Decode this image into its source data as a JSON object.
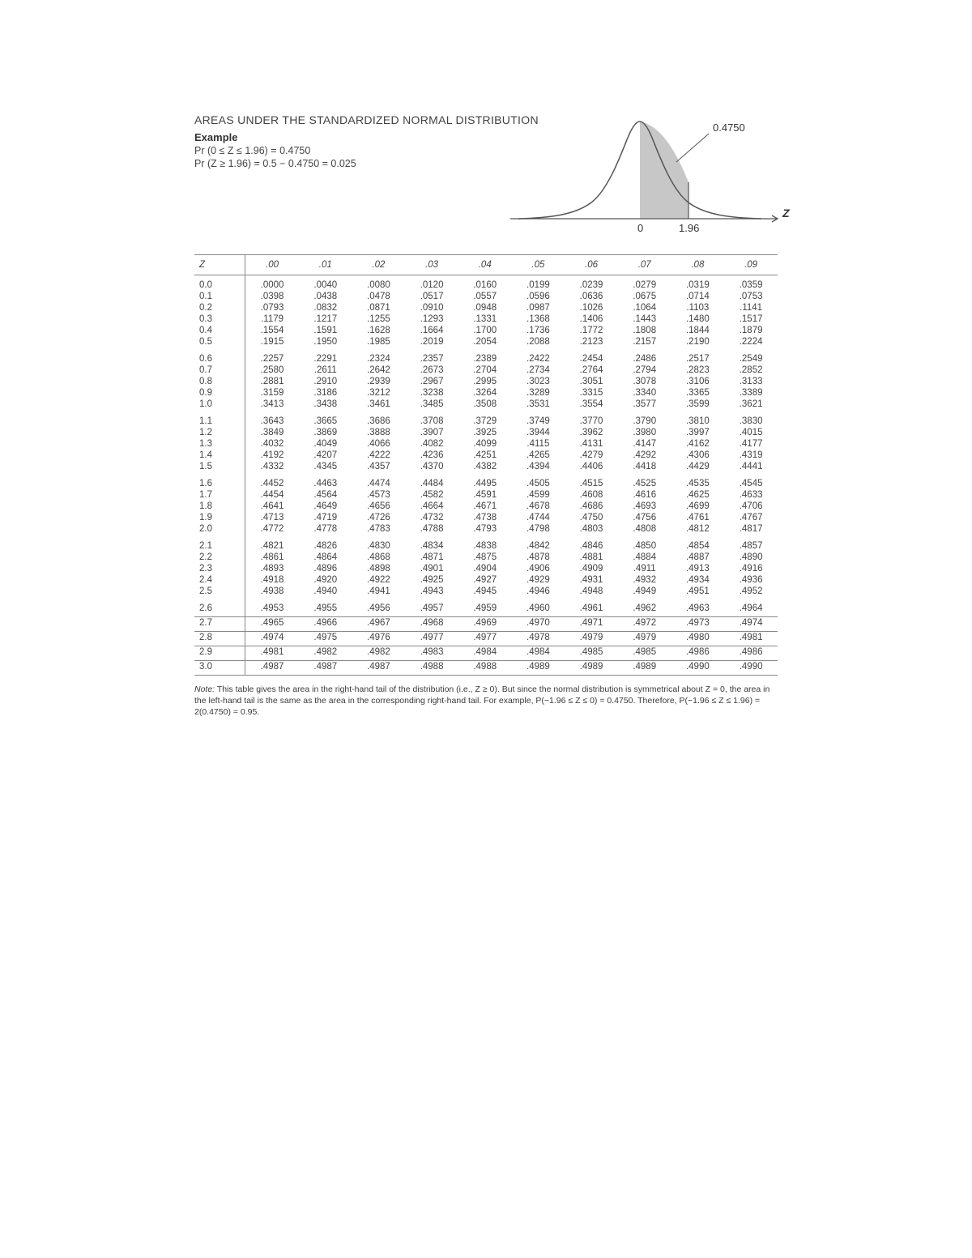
{
  "title": "AREAS UNDER THE STANDARDIZED NORMAL DISTRIBUTION",
  "example_label": "Example",
  "formula1": "Pr (0 ≤ Z ≤ 1.96) = 0.4750",
  "formula2": "Pr (Z ≥ 1.96) = 0.5 − 0.4750 = 0.025",
  "curve": {
    "area_label": "0.4750",
    "axis_label_Z": "Z",
    "tick_0": "0",
    "tick_196": "1.96",
    "curve_color": "#555555",
    "fill_color": "#c7c7c7",
    "axis_color": "#555555",
    "text_color": "#333333"
  },
  "columns": [
    "Z",
    ".00",
    ".01",
    ".02",
    ".03",
    ".04",
    ".05",
    ".06",
    ".07",
    ".08",
    ".09"
  ],
  "groups": [
    {
      "rows": [
        [
          "0.0",
          ".0000",
          ".0040",
          ".0080",
          ".0120",
          ".0160",
          ".0199",
          ".0239",
          ".0279",
          ".0319",
          ".0359"
        ],
        [
          "0.1",
          ".0398",
          ".0438",
          ".0478",
          ".0517",
          ".0557",
          ".0596",
          ".0636",
          ".0675",
          ".0714",
          ".0753"
        ],
        [
          "0.2",
          ".0793",
          ".0832",
          ".0871",
          ".0910",
          ".0948",
          ".0987",
          ".1026",
          ".1064",
          ".1103",
          ".1141"
        ],
        [
          "0.3",
          ".1179",
          ".1217",
          ".1255",
          ".1293",
          ".1331",
          ".1368",
          ".1406",
          ".1443",
          ".1480",
          ".1517"
        ],
        [
          "0.4",
          ".1554",
          ".1591",
          ".1628",
          ".1664",
          ".1700",
          ".1736",
          ".1772",
          ".1808",
          ".1844",
          ".1879"
        ],
        [
          "0.5",
          ".1915",
          ".1950",
          ".1985",
          ".2019",
          ".2054",
          ".2088",
          ".2123",
          ".2157",
          ".2190",
          ".2224"
        ]
      ]
    },
    {
      "rows": [
        [
          "0.6",
          ".2257",
          ".2291",
          ".2324",
          ".2357",
          ".2389",
          ".2422",
          ".2454",
          ".2486",
          ".2517",
          ".2549"
        ],
        [
          "0.7",
          ".2580",
          ".2611",
          ".2642",
          ".2673",
          ".2704",
          ".2734",
          ".2764",
          ".2794",
          ".2823",
          ".2852"
        ],
        [
          "0.8",
          ".2881",
          ".2910",
          ".2939",
          ".2967",
          ".2995",
          ".3023",
          ".3051",
          ".3078",
          ".3106",
          ".3133"
        ],
        [
          "0.9",
          ".3159",
          ".3186",
          ".3212",
          ".3238",
          ".3264",
          ".3289",
          ".3315",
          ".3340",
          ".3365",
          ".3389"
        ],
        [
          "1.0",
          ".3413",
          ".3438",
          ".3461",
          ".3485",
          ".3508",
          ".3531",
          ".3554",
          ".3577",
          ".3599",
          ".3621"
        ]
      ]
    },
    {
      "rows": [
        [
          "1.1",
          ".3643",
          ".3665",
          ".3686",
          ".3708",
          ".3729",
          ".3749",
          ".3770",
          ".3790",
          ".3810",
          ".3830"
        ],
        [
          "1.2",
          ".3849",
          ".3869",
          ".3888",
          ".3907",
          ".3925",
          ".3944",
          ".3962",
          ".3980",
          ".3997",
          ".4015"
        ],
        [
          "1.3",
          ".4032",
          ".4049",
          ".4066",
          ".4082",
          ".4099",
          ".4115",
          ".4131",
          ".4147",
          ".4162",
          ".4177"
        ],
        [
          "1.4",
          ".4192",
          ".4207",
          ".4222",
          ".4236",
          ".4251",
          ".4265",
          ".4279",
          ".4292",
          ".4306",
          ".4319"
        ],
        [
          "1.5",
          ".4332",
          ".4345",
          ".4357",
          ".4370",
          ".4382",
          ".4394",
          ".4406",
          ".4418",
          ".4429",
          ".4441"
        ]
      ]
    },
    {
      "rows": [
        [
          "1.6",
          ".4452",
          ".4463",
          ".4474",
          ".4484",
          ".4495",
          ".4505",
          ".4515",
          ".4525",
          ".4535",
          ".4545"
        ],
        [
          "1.7",
          ".4454",
          ".4564",
          ".4573",
          ".4582",
          ".4591",
          ".4599",
          ".4608",
          ".4616",
          ".4625",
          ".4633"
        ],
        [
          "1.8",
          ".4641",
          ".4649",
          ".4656",
          ".4664",
          ".4671",
          ".4678",
          ".4686",
          ".4693",
          ".4699",
          ".4706"
        ],
        [
          "1.9",
          ".4713",
          ".4719",
          ".4726",
          ".4732",
          ".4738",
          ".4744",
          ".4750",
          ".4756",
          ".4761",
          ".4767"
        ],
        [
          "2.0",
          ".4772",
          ".4778",
          ".4783",
          ".4788",
          ".4793",
          ".4798",
          ".4803",
          ".4808",
          ".4812",
          ".4817"
        ]
      ]
    },
    {
      "rows": [
        [
          "2.1",
          ".4821",
          ".4826",
          ".4830",
          ".4834",
          ".4838",
          ".4842",
          ".4846",
          ".4850",
          ".4854",
          ".4857"
        ],
        [
          "2.2",
          ".4861",
          ".4864",
          ".4868",
          ".4871",
          ".4875",
          ".4878",
          ".4881",
          ".4884",
          ".4887",
          ".4890"
        ],
        [
          "2.3",
          ".4893",
          ".4896",
          ".4898",
          ".4901",
          ".4904",
          ".4906",
          ".4909",
          ".4911",
          ".4913",
          ".4916"
        ],
        [
          "2.4",
          ".4918",
          ".4920",
          ".4922",
          ".4925",
          ".4927",
          ".4929",
          ".4931",
          ".4932",
          ".4934",
          ".4936"
        ],
        [
          "2.5",
          ".4938",
          ".4940",
          ".4941",
          ".4943",
          ".4945",
          ".4946",
          ".4948",
          ".4949",
          ".4951",
          ".4952"
        ]
      ]
    },
    {
      "rows": [
        [
          "2.6",
          ".4953",
          ".4955",
          ".4956",
          ".4957",
          ".4959",
          ".4960",
          ".4961",
          ".4962",
          ".4963",
          ".4964"
        ],
        [
          "2.7",
          ".4965",
          ".4966",
          ".4967",
          ".4968",
          ".4969",
          ".4970",
          ".4971",
          ".4972",
          ".4973",
          ".4974"
        ],
        [
          "2.8",
          ".4974",
          ".4975",
          ".4976",
          ".4977",
          ".4977",
          ".4978",
          ".4979",
          ".4979",
          ".4980",
          ".4981"
        ],
        [
          "2.9",
          ".4981",
          ".4982",
          ".4982",
          ".4983",
          ".4984",
          ".4984",
          ".4985",
          ".4985",
          ".4986",
          ".4986"
        ],
        [
          "3.0",
          ".4987",
          ".4987",
          ".4987",
          ".4988",
          ".4988",
          ".4989",
          ".4989",
          ".4989",
          ".4990",
          ".4990"
        ]
      ]
    }
  ],
  "note_label": "Note:",
  "note_text": "This table gives the area in the right-hand tail of the distribution (i.e., Z ≥ 0). But since the normal distribution is symmetrical about Z = 0, the area in the left-hand tail is the same as the area in the corresponding right-hand tail. For example, P(−1.96 ≤ Z ≤ 0) = 0.4750. Therefore, P(−1.96 ≤ Z ≤ 1.96) = 2(0.4750) = 0.95."
}
